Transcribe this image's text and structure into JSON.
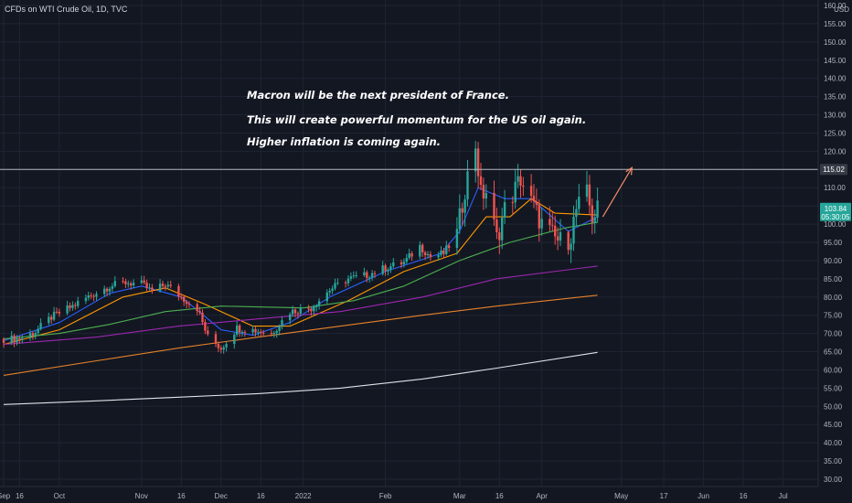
{
  "header": {
    "title": "CFDs on WTI Crude Oil, 1D, TVC"
  },
  "currency": "USD",
  "annotations": [
    "Macron will be the next president of France.",
    "This will create powerful momentum for the US oil again.",
    "Higher inflation is coming again."
  ],
  "colors": {
    "background": "#131722",
    "grid": "#1f2433",
    "up": "#26a69a",
    "down": "#ef5350",
    "hline": "#b2b5be",
    "arrow": "#f28b6b",
    "ma_fast": "#2962ff",
    "ma_mid": "#ff9800",
    "ma_green": "#4caf50",
    "ma_purple": "#9c27b0",
    "ma_orange": "#e8832a",
    "ma_white": "#e0e3eb"
  },
  "chart_data": {
    "type": "candlestick",
    "y_axis": {
      "ticks": [
        30,
        35,
        40,
        45,
        50,
        55,
        60,
        65,
        70,
        75,
        80,
        85,
        90,
        95,
        100,
        105,
        110,
        115,
        120,
        125,
        130,
        135,
        140,
        145,
        150,
        155,
        160
      ],
      "tick_labels": [
        "30.00",
        "35.00",
        "40.00",
        "45.00",
        "50.00",
        "55.00",
        "60.00",
        "65.00",
        "70.00",
        "75.00",
        "80.00",
        "85.00",
        "90.00",
        "95.00",
        "100.00",
        "105.00",
        "110.00",
        "115.00",
        "120.00",
        "125.00",
        "130.00",
        "135.00",
        "140.00",
        "145.00",
        "150.00",
        "155.00",
        "160.00"
      ],
      "range": [
        29,
        163
      ]
    },
    "x_axis": {
      "start": "2021-09-10",
      "range": [
        "2021-09-10",
        "2022-07-10"
      ],
      "ticks": [
        {
          "label": "Sep",
          "date": "2021-09-10"
        },
        {
          "label": "16",
          "date": "2021-09-16"
        },
        {
          "label": "Oct",
          "date": "2021-10-01"
        },
        {
          "label": "Nov",
          "date": "2021-11-01"
        },
        {
          "label": "16",
          "date": "2021-11-16"
        },
        {
          "label": "Dec",
          "date": "2021-12-01"
        },
        {
          "label": "16",
          "date": "2021-12-16"
        },
        {
          "label": "2022",
          "date": "2022-01-01"
        },
        {
          "label": "Feb",
          "date": "2022-02-01"
        },
        {
          "label": "Mar",
          "date": "2022-03-01"
        },
        {
          "label": "16",
          "date": "2022-03-16"
        },
        {
          "label": "Apr",
          "date": "2022-04-01"
        },
        {
          "label": "May",
          "date": "2022-05-01"
        },
        {
          "label": "17",
          "date": "2022-05-17"
        },
        {
          "label": "Jun",
          "date": "2022-06-01"
        },
        {
          "label": "16",
          "date": "2022-06-16"
        },
        {
          "label": "Jul",
          "date": "2022-07-01"
        }
      ]
    },
    "close_path": [
      [
        "2021-09-10",
        68.5
      ],
      [
        "2021-09-16",
        68.5
      ],
      [
        "2021-09-22",
        70.5
      ],
      [
        "2021-09-28",
        74.5
      ],
      [
        "2021-10-06",
        77.5
      ],
      [
        "2021-10-13",
        80.5
      ],
      [
        "2021-10-20",
        83
      ],
      [
        "2021-10-26",
        84
      ],
      [
        "2021-11-01",
        83.5
      ],
      [
        "2021-11-05",
        81.5
      ],
      [
        "2021-11-10",
        83.5
      ],
      [
        "2021-11-16",
        80
      ],
      [
        "2021-11-22",
        77
      ],
      [
        "2021-11-26",
        69
      ],
      [
        "2021-12-01",
        66
      ],
      [
        "2021-12-07",
        71.5
      ],
      [
        "2021-12-13",
        71
      ],
      [
        "2021-12-20",
        70
      ],
      [
        "2021-12-27",
        76
      ],
      [
        "2022-01-04",
        77
      ],
      [
        "2022-01-11",
        82
      ],
      [
        "2022-01-18",
        85
      ],
      [
        "2022-01-25",
        86
      ],
      [
        "2022-02-01",
        88
      ],
      [
        "2022-02-08",
        89.5
      ],
      [
        "2022-02-14",
        94
      ],
      [
        "2022-02-18",
        91
      ],
      [
        "2022-02-23",
        92
      ],
      [
        "2022-02-28",
        97
      ],
      [
        "2022-03-03",
        110
      ],
      [
        "2022-03-07",
        122
      ],
      [
        "2022-03-09",
        108
      ],
      [
        "2022-03-11",
        109
      ],
      [
        "2022-03-15",
        96
      ],
      [
        "2022-03-18",
        104
      ],
      [
        "2022-03-24",
        112.5
      ],
      [
        "2022-03-28",
        106
      ],
      [
        "2022-04-01",
        100
      ],
      [
        "2022-04-06",
        96
      ],
      [
        "2022-04-11",
        94
      ],
      [
        "2022-04-14",
        104
      ],
      [
        "2022-04-18",
        108
      ],
      [
        "2022-04-20",
        102
      ],
      [
        "2022-04-22",
        103.84
      ]
    ],
    "last_price": 103.84,
    "countdown": "05:30:05",
    "horizontal_level": 115.02,
    "projection": {
      "from": [
        "2022-04-24",
        102
      ],
      "to": [
        "2022-05-05",
        115.5
      ]
    },
    "moving_averages": [
      {
        "color_key": "ma_fast",
        "values": [
          [
            "2021-09-10",
            68
          ],
          [
            "2021-10-01",
            73
          ],
          [
            "2021-10-20",
            81
          ],
          [
            "2021-11-01",
            83
          ],
          [
            "2021-11-16",
            80
          ],
          [
            "2021-12-01",
            71
          ],
          [
            "2021-12-13",
            69.5
          ],
          [
            "2021-12-27",
            73
          ],
          [
            "2022-01-11",
            80
          ],
          [
            "2022-02-01",
            87
          ],
          [
            "2022-02-22",
            92
          ],
          [
            "2022-03-01",
            98
          ],
          [
            "2022-03-08",
            110
          ],
          [
            "2022-03-18",
            107
          ],
          [
            "2022-03-28",
            107
          ],
          [
            "2022-04-11",
            98
          ],
          [
            "2022-04-22",
            102
          ]
        ]
      },
      {
        "color_key": "ma_mid",
        "values": [
          [
            "2021-09-10",
            67
          ],
          [
            "2021-10-01",
            71
          ],
          [
            "2021-10-25",
            80
          ],
          [
            "2021-11-10",
            82.5
          ],
          [
            "2021-11-25",
            78
          ],
          [
            "2021-12-13",
            72
          ],
          [
            "2021-12-27",
            72
          ],
          [
            "2022-01-18",
            79
          ],
          [
            "2022-02-08",
            87
          ],
          [
            "2022-02-28",
            92
          ],
          [
            "2022-03-11",
            102
          ],
          [
            "2022-03-20",
            102
          ],
          [
            "2022-03-28",
            107
          ],
          [
            "2022-04-06",
            103
          ],
          [
            "2022-04-22",
            102.5
          ]
        ]
      },
      {
        "color_key": "ma_green",
        "values": [
          [
            "2021-09-10",
            68.5
          ],
          [
            "2021-10-01",
            70
          ],
          [
            "2021-10-20",
            72.5
          ],
          [
            "2021-11-10",
            76
          ],
          [
            "2021-12-01",
            77.5
          ],
          [
            "2022-01-01",
            77
          ],
          [
            "2022-01-20",
            79
          ],
          [
            "2022-02-08",
            83
          ],
          [
            "2022-03-01",
            90
          ],
          [
            "2022-03-20",
            95
          ],
          [
            "2022-04-10",
            99
          ],
          [
            "2022-04-22",
            100.5
          ]
        ]
      },
      {
        "color_key": "ma_purple",
        "values": [
          [
            "2021-09-10",
            67
          ],
          [
            "2021-10-15",
            69
          ],
          [
            "2021-11-15",
            72
          ],
          [
            "2021-12-15",
            74
          ],
          [
            "2022-01-15",
            76
          ],
          [
            "2022-02-15",
            80
          ],
          [
            "2022-03-15",
            85
          ],
          [
            "2022-04-22",
            88.5
          ]
        ]
      },
      {
        "color_key": "ma_orange",
        "values": [
          [
            "2021-09-10",
            58.5
          ],
          [
            "2021-10-15",
            62.5
          ],
          [
            "2021-11-15",
            66
          ],
          [
            "2021-12-15",
            69
          ],
          [
            "2022-01-15",
            72
          ],
          [
            "2022-02-15",
            75
          ],
          [
            "2022-03-15",
            77.5
          ],
          [
            "2022-04-22",
            80.5
          ]
        ]
      },
      {
        "color_key": "ma_white",
        "values": [
          [
            "2021-09-10",
            50.5
          ],
          [
            "2021-10-15",
            51.5
          ],
          [
            "2021-11-15",
            52.5
          ],
          [
            "2021-12-15",
            53.5
          ],
          [
            "2022-01-15",
            55
          ],
          [
            "2022-02-15",
            57.5
          ],
          [
            "2022-03-15",
            60.5
          ],
          [
            "2022-04-22",
            64.8
          ]
        ]
      }
    ]
  }
}
